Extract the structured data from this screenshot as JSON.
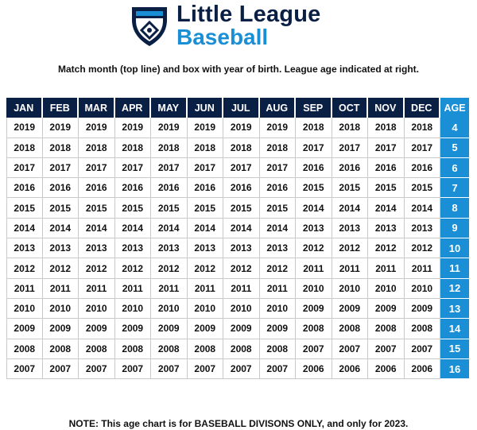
{
  "logo": {
    "line1": "Little League",
    "line2": "Baseball",
    "icon": "little-league-shield-icon",
    "colors": {
      "navy": "#0a1f44",
      "blue": "#1a8fd6"
    }
  },
  "instruction": "Match month (top line) and box with year of birth. League age indicated at right.",
  "table": {
    "headers": [
      "JAN",
      "FEB",
      "MAR",
      "APR",
      "MAY",
      "JUN",
      "JUL",
      "AUG",
      "SEP",
      "OCT",
      "NOV",
      "DEC",
      "AGE"
    ],
    "rows": [
      {
        "years": [
          "2019",
          "2019",
          "2019",
          "2019",
          "2019",
          "2019",
          "2019",
          "2019",
          "2018",
          "2018",
          "2018",
          "2018"
        ],
        "age": "4"
      },
      {
        "years": [
          "2018",
          "2018",
          "2018",
          "2018",
          "2018",
          "2018",
          "2018",
          "2018",
          "2017",
          "2017",
          "2017",
          "2017"
        ],
        "age": "5"
      },
      {
        "years": [
          "2017",
          "2017",
          "2017",
          "2017",
          "2017",
          "2017",
          "2017",
          "2017",
          "2016",
          "2016",
          "2016",
          "2016"
        ],
        "age": "6"
      },
      {
        "years": [
          "2016",
          "2016",
          "2016",
          "2016",
          "2016",
          "2016",
          "2016",
          "2016",
          "2015",
          "2015",
          "2015",
          "2015"
        ],
        "age": "7"
      },
      {
        "years": [
          "2015",
          "2015",
          "2015",
          "2015",
          "2015",
          "2015",
          "2015",
          "2015",
          "2014",
          "2014",
          "2014",
          "2014"
        ],
        "age": "8"
      },
      {
        "years": [
          "2014",
          "2014",
          "2014",
          "2014",
          "2014",
          "2014",
          "2014",
          "2014",
          "2013",
          "2013",
          "2013",
          "2013"
        ],
        "age": "9"
      },
      {
        "years": [
          "2013",
          "2013",
          "2013",
          "2013",
          "2013",
          "2013",
          "2013",
          "2013",
          "2012",
          "2012",
          "2012",
          "2012"
        ],
        "age": "10"
      },
      {
        "years": [
          "2012",
          "2012",
          "2012",
          "2012",
          "2012",
          "2012",
          "2012",
          "2012",
          "2011",
          "2011",
          "2011",
          "2011"
        ],
        "age": "11"
      },
      {
        "years": [
          "2011",
          "2011",
          "2011",
          "2011",
          "2011",
          "2011",
          "2011",
          "2011",
          "2010",
          "2010",
          "2010",
          "2010"
        ],
        "age": "12"
      },
      {
        "years": [
          "2010",
          "2010",
          "2010",
          "2010",
          "2010",
          "2010",
          "2010",
          "2010",
          "2009",
          "2009",
          "2009",
          "2009"
        ],
        "age": "13"
      },
      {
        "years": [
          "2009",
          "2009",
          "2009",
          "2009",
          "2009",
          "2009",
          "2009",
          "2009",
          "2008",
          "2008",
          "2008",
          "2008"
        ],
        "age": "14"
      },
      {
        "years": [
          "2008",
          "2008",
          "2008",
          "2008",
          "2008",
          "2008",
          "2008",
          "2008",
          "2007",
          "2007",
          "2007",
          "2007"
        ],
        "age": "15"
      },
      {
        "years": [
          "2007",
          "2007",
          "2007",
          "2007",
          "2007",
          "2007",
          "2007",
          "2007",
          "2006",
          "2006",
          "2006",
          "2006"
        ],
        "age": "16"
      }
    ]
  },
  "note": "NOTE: This age chart is for BASEBALL DIVISONS ONLY, and only for 2023."
}
